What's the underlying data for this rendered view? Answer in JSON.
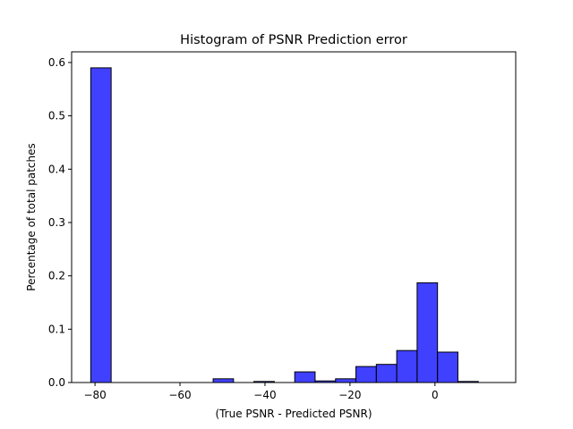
{
  "chart_data": {
    "type": "bar",
    "title": "Histogram of PSNR Prediction error",
    "xlabel": "(True PSNR - Predicted PSNR)",
    "ylabel": "Percentage of total patches",
    "xlim": [
      -85.5,
      19
    ],
    "ylim": [
      0,
      0.62
    ],
    "x_ticks": [
      -80,
      -60,
      -40,
      -20,
      0
    ],
    "y_ticks": [
      0.0,
      0.1,
      0.2,
      0.3,
      0.4,
      0.5,
      0.6
    ],
    "x_tick_labels": [
      "−80",
      "−60",
      "−40",
      "−20",
      "0"
    ],
    "y_tick_labels": [
      "0.0",
      "0.1",
      "0.2",
      "0.3",
      "0.4",
      "0.5",
      "0.6"
    ],
    "bin_edges": [
      -81.0,
      -76.2,
      -71.4,
      -66.6,
      -61.8,
      -57.0,
      -52.2,
      -47.4,
      -42.6,
      -37.8,
      -33.0,
      -28.2,
      -23.4,
      -18.6,
      -13.8,
      -9.0,
      -4.2,
      0.6,
      5.4,
      10.2,
      15.0
    ],
    "values": [
      0.59,
      0.0,
      0.0,
      0.0,
      0.0,
      0.0,
      0.007,
      0.0,
      0.002,
      0.0,
      0.02,
      0.003,
      0.007,
      0.03,
      0.034,
      0.06,
      0.187,
      0.057,
      0.002,
      0.0
    ],
    "bar_color": "#0000ff",
    "bar_alpha": 0.75,
    "edge_color": "#000000",
    "grid": false,
    "legend": "none"
  }
}
